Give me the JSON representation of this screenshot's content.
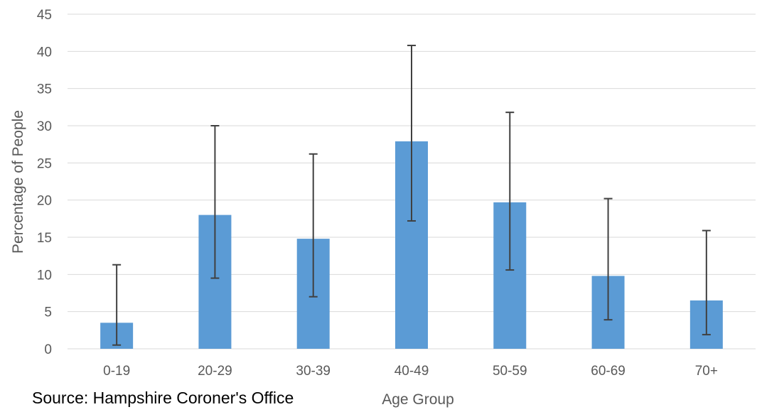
{
  "chart_data": {
    "type": "bar",
    "title": "",
    "xlabel": "Age Group",
    "ylabel": "Percentage of People",
    "categories": [
      "0-19",
      "20-29",
      "30-39",
      "40-49",
      "50-59",
      "60-69",
      "70+"
    ],
    "values": [
      3.5,
      18.0,
      14.8,
      27.9,
      19.7,
      9.8,
      6.5
    ],
    "error_low": [
      0.5,
      9.5,
      7.0,
      17.2,
      10.6,
      3.9,
      1.9
    ],
    "error_high": [
      11.3,
      30.0,
      26.2,
      40.8,
      31.8,
      20.2,
      15.9
    ],
    "ylim": [
      0,
      45
    ],
    "yticks": [
      0,
      5,
      10,
      15,
      20,
      25,
      30,
      35,
      40,
      45
    ],
    "grid": true,
    "legend": "none",
    "colors": {
      "bar": "#5B9BD5",
      "error_bar": "#404040",
      "gridline": "#D9D9D9",
      "tick_text": "#595959"
    }
  },
  "source_note": "Source: Hampshire Coroner's Office"
}
